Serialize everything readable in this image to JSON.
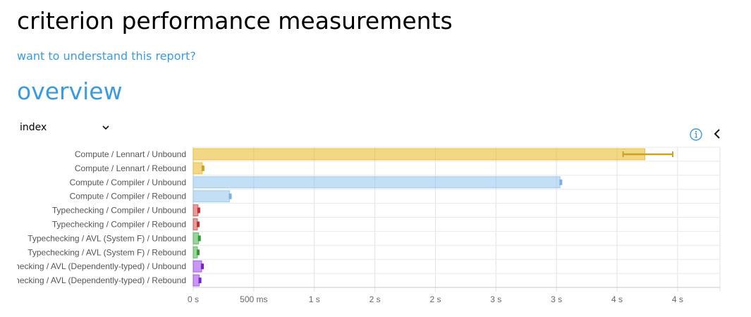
{
  "page": {
    "title": "criterion performance measurements",
    "help_link": "want to understand this report?",
    "section_title": "overview"
  },
  "controls": {
    "sort_select": "index",
    "info_icon": "info-icon",
    "collapse_icon": "chevron-left-icon"
  },
  "chart_data": {
    "type": "bar",
    "orientation": "horizontal",
    "title": "",
    "xlabel": "",
    "ylabel": "",
    "x_unit": "seconds",
    "xlim": [
      0,
      4.35
    ],
    "grid": true,
    "categories": [
      "Compute / Lennart / Unbound",
      "Compute / Lennart / Rebound",
      "Compute / Compiler / Unbound",
      "Compute / Compiler / Rebound",
      "Typechecking / Compiler / Unbound",
      "Typechecking / Compiler / Rebound",
      "Typechecking / AVL (System F) / Unbound",
      "Typechecking / AVL (System F) / Rebound",
      "Typechecking / AVL (Dependently-typed) / Unbound",
      "Typechecking / AVL (Dependently-typed) / Rebound"
    ],
    "values": [
      3.73,
      0.075,
      3.03,
      0.3,
      0.04,
      0.035,
      0.045,
      0.035,
      0.07,
      0.05
    ],
    "error_low": [
      3.55,
      0.075,
      3.03,
      0.3,
      0.04,
      0.035,
      0.045,
      0.035,
      0.07,
      0.05
    ],
    "error_high": [
      3.96,
      0.08,
      3.04,
      0.305,
      0.045,
      0.04,
      0.05,
      0.04,
      0.075,
      0.055
    ],
    "colors": [
      "#e8b820",
      "#e8b820",
      "#90c4ef",
      "#90c4ef",
      "#d34b4b",
      "#d34b4b",
      "#4caf50",
      "#4caf50",
      "#9b45e8",
      "#9b45e8"
    ],
    "error_colors": [
      "#c9a227",
      "#c9a227",
      "#7fb0e0",
      "#7fb0e0",
      "#c62d2d",
      "#c62d2d",
      "#2e9a35",
      "#2e9a35",
      "#7a1fd8",
      "#7a1fd8"
    ],
    "x_ticks": [
      0,
      0.5,
      1,
      1.5,
      2,
      2.5,
      3,
      3.5,
      4
    ],
    "x_tick_labels": [
      "0 s",
      "500 ms",
      "1 s",
      "2 s",
      "2 s",
      "3 s",
      "3 s",
      "4 s",
      "4 s"
    ]
  }
}
